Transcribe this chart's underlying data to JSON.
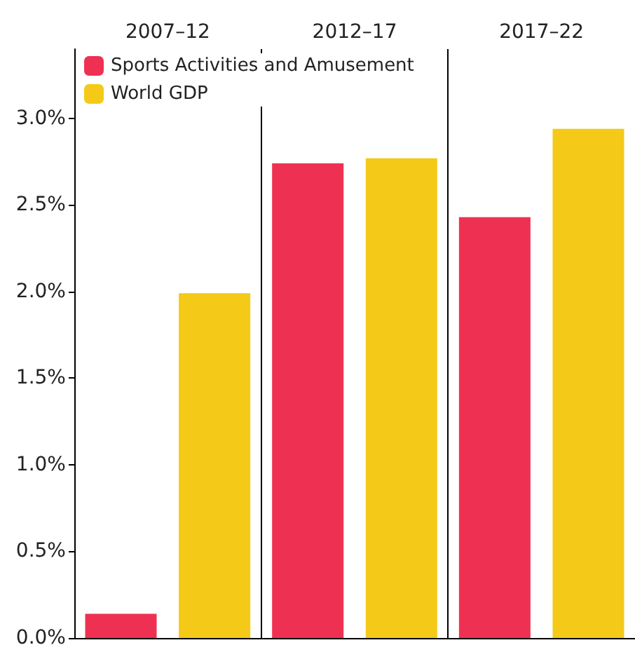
{
  "chart_data": {
    "type": "bar",
    "categories": [
      "2007–12",
      "2012–17",
      "2017–22"
    ],
    "series": [
      {
        "name": "Sports Activities and Amusement",
        "color": "#ee3152",
        "values": [
          0.14,
          2.74,
          2.43
        ]
      },
      {
        "name": "World GDP",
        "color": "#f4c918",
        "values": [
          1.99,
          2.77,
          2.94
        ]
      }
    ],
    "ylim": [
      0,
      3.4
    ],
    "yticks": [
      {
        "value": 0,
        "label": "0.0%"
      },
      {
        "value": 0.5,
        "label": "0.5%"
      },
      {
        "value": 1,
        "label": "1.0%"
      },
      {
        "value": 1.5,
        "label": "1.5%"
      },
      {
        "value": 2,
        "label": "2.0%"
      },
      {
        "value": 2.5,
        "label": "2.5%"
      },
      {
        "value": 3,
        "label": "3.0%"
      }
    ],
    "legend": "top left",
    "grid": false
  }
}
